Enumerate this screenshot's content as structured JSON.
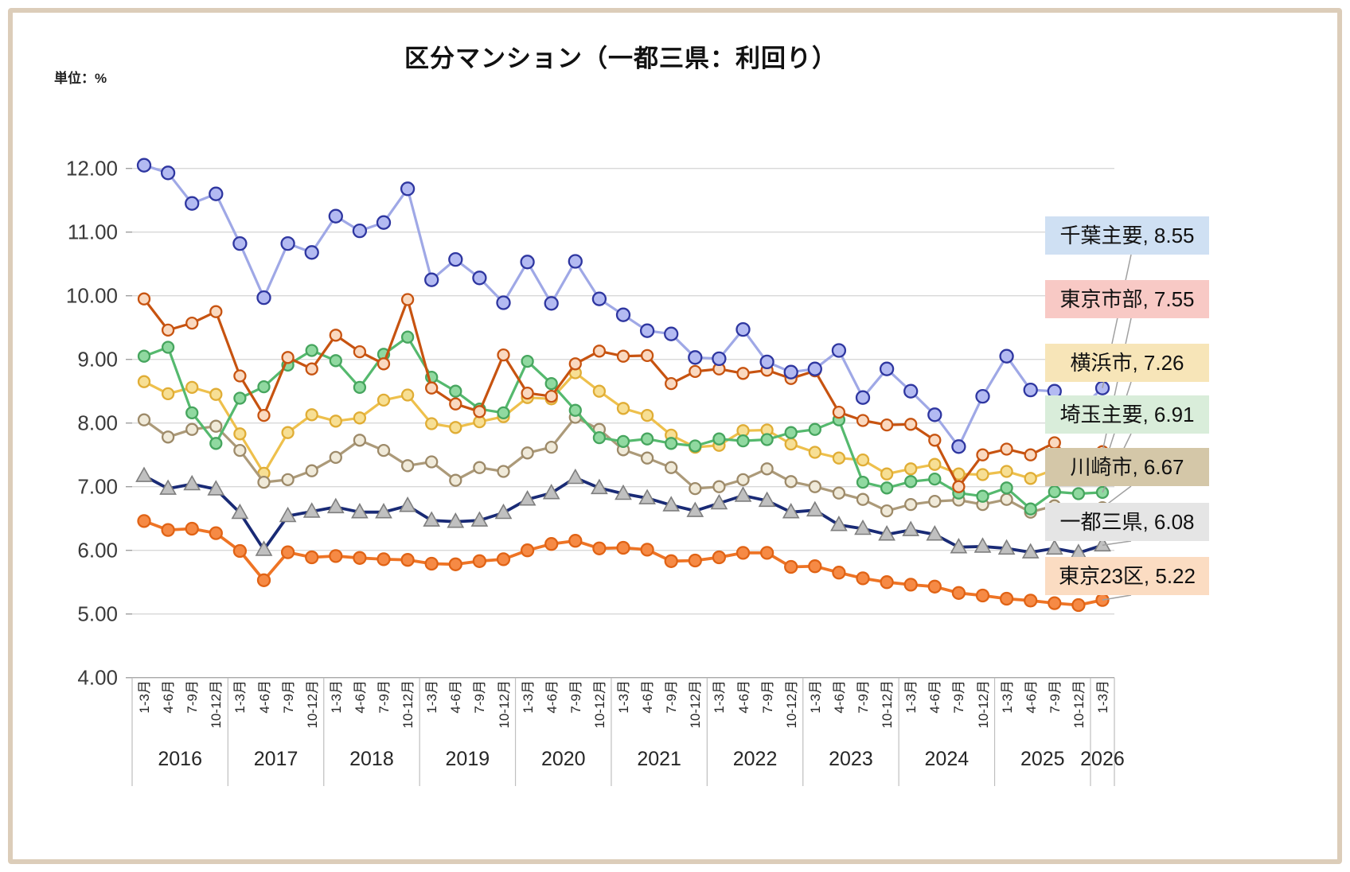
{
  "chart": {
    "title": "区分マンション（一都三県：利回り）",
    "unit_label": "単位：%"
  },
  "chart_data": {
    "type": "line",
    "title": "区分マンション（一都三県：利回り）",
    "unit": "%",
    "x_axis": {
      "quarter_labels": [
        "1-3月",
        "4-6月",
        "7-9月",
        "10-12月",
        "1-3月",
        "4-6月",
        "7-9月",
        "10-12月",
        "1-3月",
        "4-6月",
        "7-9月",
        "10-12月",
        "1-3月",
        "4-6月",
        "7-9月",
        "10-12月",
        "1-3月",
        "4-6月",
        "7-9月",
        "10-12月",
        "1-3月",
        "4-6月",
        "7-9月",
        "10-12月",
        "1-3月",
        "4-6月",
        "7-9月",
        "10-12月",
        "1-3月",
        "4-6月",
        "7-9月",
        "10-12月",
        "1-3月",
        "4-6月",
        "7-9月",
        "10-12月",
        "1-3月",
        "4-6月",
        "7-9月",
        "10-12月",
        "1-3月"
      ],
      "years": [
        {
          "label": "2016",
          "quarters": 4
        },
        {
          "label": "2017",
          "quarters": 4
        },
        {
          "label": "2018",
          "quarters": 4
        },
        {
          "label": "2019",
          "quarters": 4
        },
        {
          "label": "2020",
          "quarters": 4
        },
        {
          "label": "2021",
          "quarters": 4
        },
        {
          "label": "2022",
          "quarters": 4
        },
        {
          "label": "2023",
          "quarters": 4
        },
        {
          "label": "2024",
          "quarters": 4
        },
        {
          "label": "2025",
          "quarters": 4
        },
        {
          "label": "2026",
          "quarters": 1
        }
      ]
    },
    "y_axis": {
      "min": 4,
      "max": 12,
      "step": 1,
      "tick_format": "0.00",
      "grid": true
    },
    "legend_position": "right-callouts",
    "series": [
      {
        "key": "chiba",
        "name": "千葉主要",
        "final_value": "8.55",
        "legend_bg": "#cfe0f3",
        "line_color": "#9fa8e6",
        "marker": {
          "shape": "circle",
          "fill": "#b3baf2",
          "stroke": "#2e36a0"
        },
        "values": [
          12.05,
          11.93,
          11.45,
          11.6,
          10.82,
          9.97,
          10.82,
          10.68,
          11.25,
          11.02,
          11.15,
          11.68,
          10.25,
          10.57,
          10.28,
          9.89,
          10.53,
          9.88,
          10.54,
          9.95,
          9.7,
          9.45,
          9.4,
          9.03,
          9.01,
          9.47,
          8.96,
          8.8,
          8.85,
          9.14,
          8.4,
          8.85,
          8.5,
          8.13,
          7.63,
          8.42,
          9.05,
          8.52,
          8.5,
          8.19,
          8.55
        ]
      },
      {
        "key": "tokyo-shibu",
        "name": "東京市部",
        "final_value": "7.55",
        "legend_bg": "#f8c9c5",
        "line_color": "#c75310",
        "marker": {
          "shape": "circle",
          "fill": "#fad9c0",
          "stroke": "#c75310"
        },
        "values": [
          9.95,
          9.46,
          9.57,
          9.75,
          8.74,
          8.12,
          9.03,
          8.85,
          9.38,
          9.12,
          8.93,
          9.94,
          8.55,
          8.3,
          8.18,
          9.07,
          8.47,
          8.42,
          8.93,
          9.13,
          9.05,
          9.06,
          8.62,
          8.81,
          8.85,
          8.78,
          8.83,
          8.7,
          8.82,
          8.17,
          8.04,
          7.97,
          7.98,
          7.73,
          7.0,
          7.5,
          7.59,
          7.5,
          7.69,
          7.28,
          7.55
        ]
      },
      {
        "key": "yokohama",
        "name": "横浜市",
        "final_value": "7.26",
        "legend_bg": "#f7e5b8",
        "line_color": "#eec04c",
        "marker": {
          "shape": "circle",
          "fill": "#f7df94",
          "stroke": "#e0ad35"
        },
        "values": [
          8.65,
          8.46,
          8.56,
          8.45,
          7.83,
          7.21,
          7.85,
          8.13,
          8.03,
          8.08,
          8.36,
          8.44,
          7.99,
          7.93,
          8.02,
          8.1,
          8.4,
          8.38,
          8.79,
          8.5,
          8.23,
          8.12,
          7.81,
          7.62,
          7.65,
          7.88,
          7.89,
          7.67,
          7.54,
          7.45,
          7.42,
          7.2,
          7.28,
          7.35,
          7.2,
          7.19,
          7.24,
          7.13,
          7.27,
          7.13,
          7.26
        ]
      },
      {
        "key": "saitama",
        "name": "埼玉主要",
        "final_value": "6.91",
        "legend_bg": "#d9edda",
        "line_color": "#55b96e",
        "marker": {
          "shape": "circle",
          "fill": "#90d9a0",
          "stroke": "#46a55e"
        },
        "values": [
          9.05,
          9.19,
          8.16,
          7.68,
          8.39,
          8.57,
          8.91,
          9.14,
          8.98,
          8.56,
          9.08,
          9.35,
          8.72,
          8.5,
          8.22,
          8.16,
          8.97,
          8.62,
          8.2,
          7.77,
          7.71,
          7.75,
          7.68,
          7.64,
          7.75,
          7.72,
          7.74,
          7.85,
          7.9,
          8.05,
          7.07,
          6.98,
          7.08,
          7.12,
          6.9,
          6.85,
          6.98,
          6.65,
          6.92,
          6.89,
          6.91
        ]
      },
      {
        "key": "kawasaki",
        "name": "川崎市",
        "final_value": "6.67",
        "legend_bg": "#d4c7a8",
        "line_color": "#ac9a79",
        "marker": {
          "shape": "circle",
          "fill": "#f0ead9",
          "stroke": "#9d8a69"
        },
        "values": [
          8.05,
          7.78,
          7.9,
          7.95,
          7.57,
          7.07,
          7.11,
          7.25,
          7.46,
          7.73,
          7.57,
          7.33,
          7.39,
          7.1,
          7.3,
          7.24,
          7.53,
          7.62,
          8.09,
          7.9,
          7.58,
          7.45,
          7.3,
          6.97,
          7.0,
          7.11,
          7.28,
          7.08,
          7.0,
          6.9,
          6.8,
          6.62,
          6.72,
          6.77,
          6.79,
          6.72,
          6.8,
          6.6,
          6.7,
          6.57,
          6.67
        ]
      },
      {
        "key": "itto-sanken",
        "name": "一都三県",
        "final_value": "6.08",
        "legend_bg": "#e5e5e5",
        "line_color": "#192a75",
        "marker": {
          "shape": "triangle",
          "fill": "#c0c0c0",
          "stroke": "#7e7e7e"
        },
        "values": [
          7.17,
          6.97,
          7.04,
          6.96,
          6.59,
          6.01,
          6.54,
          6.61,
          6.68,
          6.6,
          6.6,
          6.7,
          6.47,
          6.45,
          6.47,
          6.59,
          6.8,
          6.9,
          7.14,
          6.98,
          6.89,
          6.82,
          6.71,
          6.62,
          6.74,
          6.86,
          6.78,
          6.6,
          6.63,
          6.4,
          6.34,
          6.25,
          6.32,
          6.25,
          6.05,
          6.06,
          6.03,
          5.97,
          6.03,
          5.96,
          6.08
        ]
      },
      {
        "key": "tokyo23",
        "name": "東京23区",
        "final_value": "5.22",
        "legend_bg": "#fbdcc2",
        "line_color": "#ee7425",
        "marker": {
          "shape": "circle",
          "fill": "#f68a45",
          "stroke": "#e06315"
        },
        "values": [
          6.46,
          6.32,
          6.34,
          6.27,
          5.99,
          5.53,
          5.97,
          5.89,
          5.91,
          5.88,
          5.86,
          5.85,
          5.79,
          5.78,
          5.83,
          5.86,
          6.0,
          6.1,
          6.15,
          6.03,
          6.04,
          6.01,
          5.83,
          5.84,
          5.89,
          5.96,
          5.96,
          5.74,
          5.75,
          5.65,
          5.56,
          5.5,
          5.46,
          5.43,
          5.33,
          5.29,
          5.24,
          5.21,
          5.17,
          5.14,
          5.22
        ]
      }
    ]
  }
}
